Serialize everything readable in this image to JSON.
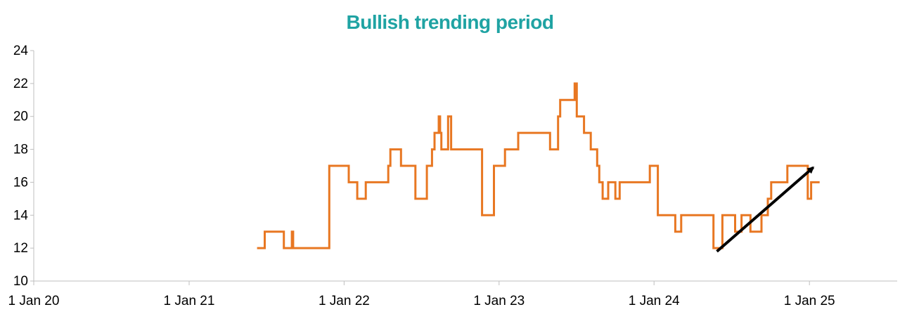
{
  "colors": {
    "title": "#1fa3a3",
    "series": "#e87722",
    "arrow": "#000000",
    "axis": "#bfbfbf"
  },
  "chart_data": {
    "type": "line",
    "title": "Bullish trending period",
    "xlabel": "",
    "ylabel": "",
    "ylim": [
      10,
      24
    ],
    "yticks": [
      10,
      12,
      14,
      16,
      18,
      20,
      22,
      24
    ],
    "xlim": [
      "2020-01-01",
      "2025-06-01"
    ],
    "xticks": [
      {
        "date": "2020-01-01",
        "label": "1 Jan 20"
      },
      {
        "date": "2021-01-01",
        "label": "1 Jan 21"
      },
      {
        "date": "2022-01-01",
        "label": "1 Jan 22"
      },
      {
        "date": "2023-01-01",
        "label": "1 Jan 23"
      },
      {
        "date": "2024-01-01",
        "label": "1 Jan 24"
      },
      {
        "date": "2025-01-01",
        "label": "1 Jan 25"
      }
    ],
    "grid": false,
    "legend": "none",
    "series": [
      {
        "step": true,
        "points": [
          [
            "2021-06-10",
            12
          ],
          [
            "2021-06-28",
            13
          ],
          [
            "2021-08-12",
            12
          ],
          [
            "2021-08-31",
            13
          ],
          [
            "2021-09-03",
            12
          ],
          [
            "2021-11-27",
            17
          ],
          [
            "2022-01-12",
            16
          ],
          [
            "2022-02-01",
            15
          ],
          [
            "2022-02-21",
            16
          ],
          [
            "2022-04-15",
            17
          ],
          [
            "2022-04-20",
            18
          ],
          [
            "2022-05-15",
            17
          ],
          [
            "2022-06-18",
            15
          ],
          [
            "2022-07-15",
            17
          ],
          [
            "2022-07-27",
            18
          ],
          [
            "2022-08-02",
            19
          ],
          [
            "2022-08-12",
            20
          ],
          [
            "2022-08-15",
            19
          ],
          [
            "2022-08-18",
            18
          ],
          [
            "2022-09-03",
            20
          ],
          [
            "2022-09-10",
            18
          ],
          [
            "2022-11-22",
            14
          ],
          [
            "2022-12-20",
            17
          ],
          [
            "2023-01-15",
            18
          ],
          [
            "2023-02-15",
            19
          ],
          [
            "2023-05-01",
            18
          ],
          [
            "2023-05-20",
            20
          ],
          [
            "2023-05-25",
            21
          ],
          [
            "2023-06-28",
            22
          ],
          [
            "2023-07-03",
            20
          ],
          [
            "2023-07-20",
            19
          ],
          [
            "2023-08-05",
            18
          ],
          [
            "2023-08-20",
            17
          ],
          [
            "2023-08-25",
            16
          ],
          [
            "2023-09-02",
            15
          ],
          [
            "2023-09-15",
            16
          ],
          [
            "2023-10-02",
            15
          ],
          [
            "2023-10-12",
            16
          ],
          [
            "2023-12-22",
            17
          ],
          [
            "2024-01-10",
            14
          ],
          [
            "2024-02-20",
            13
          ],
          [
            "2024-03-05",
            14
          ],
          [
            "2024-05-20",
            12
          ],
          [
            "2024-06-10",
            14
          ],
          [
            "2024-07-10",
            13
          ],
          [
            "2024-07-25",
            14
          ],
          [
            "2024-08-15",
            13
          ],
          [
            "2024-09-10",
            14
          ],
          [
            "2024-09-25",
            15
          ],
          [
            "2024-10-03",
            16
          ],
          [
            "2024-11-10",
            17
          ],
          [
            "2024-12-28",
            15
          ],
          [
            "2025-01-05",
            16
          ],
          [
            "2025-01-25",
            16
          ]
        ]
      }
    ],
    "annotations": [
      {
        "type": "arrow",
        "from": [
          "2024-05-28",
          11.8
        ],
        "to": [
          "2025-01-10",
          16.9
        ]
      }
    ]
  }
}
